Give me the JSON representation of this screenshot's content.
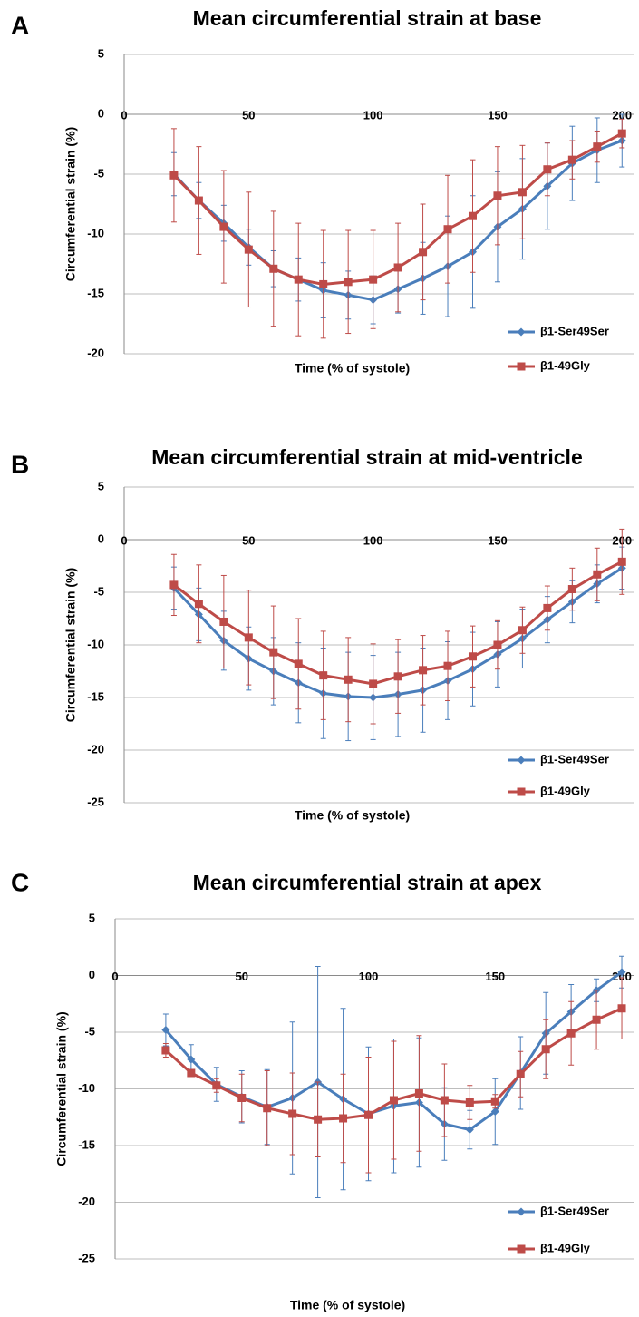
{
  "chart_data": [
    {
      "type": "line",
      "panel": "A",
      "title": "Mean circumferential strain at base",
      "x_label": "Time (% of systole)",
      "y_label": "Circumferential strain (%)",
      "x": [
        20,
        30,
        40,
        50,
        60,
        70,
        80,
        90,
        100,
        110,
        120,
        130,
        140,
        150,
        160,
        170,
        180,
        190,
        200
      ],
      "xlim": [
        0,
        205
      ],
      "xticks": [
        0,
        50,
        100,
        150,
        200
      ],
      "ylim": [
        -20,
        5
      ],
      "yticks": [
        5,
        0,
        -5,
        -10,
        -15,
        -20
      ],
      "grid": true,
      "legend": "lower right",
      "series": [
        {
          "name": "β1-Ser49Ser",
          "color": "#4a7ebb",
          "marker": "diamond",
          "values": [
            -5.0,
            -7.2,
            -9.1,
            -11.1,
            -12.9,
            -13.8,
            -14.7,
            -15.1,
            -15.5,
            -14.6,
            -13.7,
            -12.7,
            -11.5,
            -9.4,
            -7.9,
            -6.0,
            -4.1,
            -3.0,
            -2.2
          ],
          "errors": [
            1.8,
            1.5,
            1.5,
            1.5,
            1.5,
            1.8,
            2.3,
            2.0,
            2.0,
            2.0,
            3.0,
            4.2,
            4.7,
            4.6,
            4.2,
            3.6,
            3.1,
            2.7,
            2.2
          ]
        },
        {
          "name": "β1-49Gly",
          "color": "#be4b48",
          "marker": "square",
          "values": [
            -5.1,
            -7.2,
            -9.4,
            -11.3,
            -12.9,
            -13.8,
            -14.2,
            -14.0,
            -13.8,
            -12.8,
            -11.5,
            -9.6,
            -8.5,
            -6.8,
            -6.5,
            -4.6,
            -3.8,
            -2.7,
            -1.6
          ],
          "errors": [
            3.9,
            4.5,
            4.7,
            4.8,
            4.8,
            4.7,
            4.5,
            4.3,
            4.1,
            3.7,
            4.0,
            4.5,
            4.7,
            4.1,
            3.9,
            2.2,
            1.6,
            1.3,
            1.2
          ]
        }
      ]
    },
    {
      "type": "line",
      "panel": "B",
      "title": "Mean circumferential strain at mid-ventricle",
      "x_label": "Time (% of systole)",
      "y_label": "Circumferential strain (%)",
      "x": [
        20,
        30,
        40,
        50,
        60,
        70,
        80,
        90,
        100,
        110,
        120,
        130,
        140,
        150,
        160,
        170,
        180,
        190,
        200
      ],
      "xlim": [
        0,
        205
      ],
      "xticks": [
        0,
        50,
        100,
        150,
        200
      ],
      "ylim": [
        -25,
        5
      ],
      "yticks": [
        5,
        0,
        -5,
        -10,
        -15,
        -20,
        -25
      ],
      "grid": true,
      "legend": "lower right",
      "series": [
        {
          "name": "β1-Ser49Ser",
          "color": "#4a7ebb",
          "marker": "diamond",
          "values": [
            -4.6,
            -7.1,
            -9.6,
            -11.3,
            -12.5,
            -13.6,
            -14.6,
            -14.9,
            -15.0,
            -14.7,
            -14.3,
            -13.4,
            -12.3,
            -10.9,
            -9.4,
            -7.6,
            -5.9,
            -4.2,
            -2.7
          ],
          "errors": [
            2.0,
            2.5,
            2.8,
            3.0,
            3.2,
            3.8,
            4.3,
            4.2,
            4.0,
            4.0,
            4.0,
            3.7,
            3.5,
            3.1,
            2.8,
            2.2,
            2.0,
            1.8,
            2.0
          ]
        },
        {
          "name": "β1-49Gly",
          "color": "#be4b48",
          "marker": "square",
          "values": [
            -4.3,
            -6.1,
            -7.8,
            -9.3,
            -10.7,
            -11.8,
            -12.9,
            -13.3,
            -13.7,
            -13.0,
            -12.4,
            -12.0,
            -11.1,
            -10.0,
            -8.6,
            -6.5,
            -4.7,
            -3.3,
            -2.1
          ],
          "errors": [
            2.9,
            3.7,
            4.4,
            4.5,
            4.4,
            4.3,
            4.2,
            4.0,
            3.8,
            3.5,
            3.3,
            3.3,
            2.9,
            2.3,
            2.2,
            2.1,
            2.0,
            2.5,
            3.1
          ]
        }
      ]
    },
    {
      "type": "line",
      "panel": "C",
      "title": "Mean circumferential strain at apex",
      "x_label": "Time (% of systole)",
      "y_label": "Circumferential strain (%)",
      "x": [
        20,
        30,
        40,
        50,
        60,
        70,
        80,
        90,
        100,
        110,
        120,
        130,
        140,
        150,
        160,
        170,
        180,
        190,
        200
      ],
      "xlim": [
        0,
        205
      ],
      "xticks": [
        0,
        50,
        100,
        150,
        200
      ],
      "ylim": [
        -25,
        5
      ],
      "yticks": [
        5,
        0,
        -5,
        -10,
        -15,
        -20,
        -25
      ],
      "grid": true,
      "legend": "lower right",
      "series": [
        {
          "name": "β1-Ser49Ser",
          "color": "#4a7ebb",
          "marker": "diamond",
          "values": [
            -4.8,
            -7.4,
            -9.6,
            -10.7,
            -11.6,
            -10.8,
            -9.4,
            -10.9,
            -12.2,
            -11.5,
            -11.2,
            -13.1,
            -13.6,
            -12.0,
            -8.6,
            -5.1,
            -3.2,
            -1.3,
            0.3
          ],
          "errors": [
            1.4,
            1.3,
            1.5,
            2.3,
            3.3,
            6.7,
            10.2,
            8.0,
            5.9,
            5.9,
            5.7,
            3.2,
            1.7,
            2.9,
            3.2,
            3.6,
            2.4,
            1.0,
            1.4
          ]
        },
        {
          "name": "β1-49Gly",
          "color": "#be4b48",
          "marker": "square",
          "values": [
            -6.6,
            -8.6,
            -9.7,
            -10.8,
            -11.7,
            -12.2,
            -12.7,
            -12.6,
            -12.3,
            -11.0,
            -10.4,
            -11.0,
            -11.2,
            -11.1,
            -8.7,
            -6.5,
            -5.1,
            -3.9,
            -2.9
          ],
          "errors": [
            0.6,
            0.3,
            0.6,
            2.1,
            3.3,
            3.6,
            3.3,
            3.9,
            5.1,
            5.2,
            5.1,
            3.2,
            1.5,
            0.6,
            2.0,
            2.6,
            2.8,
            2.6,
            2.7
          ]
        }
      ]
    }
  ]
}
